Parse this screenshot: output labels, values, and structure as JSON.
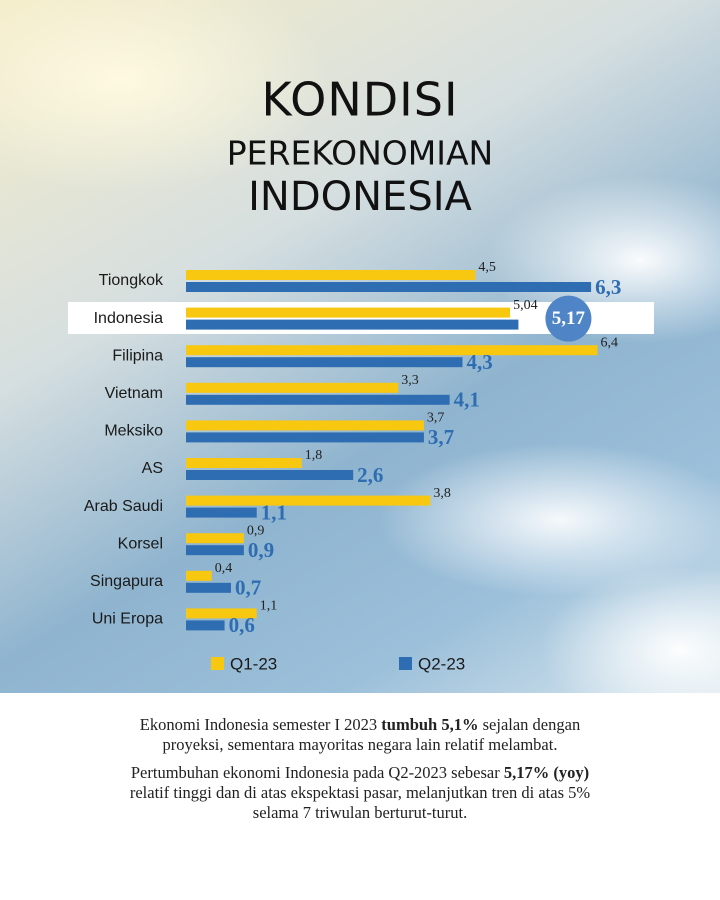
{
  "chart_data": {
    "type": "bar",
    "orientation": "horizontal",
    "title": [
      "KONDISI",
      "PEREKONOMIAN",
      "INDONESIA"
    ],
    "categories": [
      "Tiongkok",
      "Indonesia",
      "Filipina",
      "Vietnam",
      "Meksiko",
      "AS",
      "Arab Saudi",
      "Korsel",
      "Singapura",
      "Uni Eropa"
    ],
    "series": [
      {
        "name": "Q1-23",
        "color": "#f8c70f",
        "values": [
          4.5,
          5.04,
          6.4,
          3.3,
          3.7,
          1.8,
          3.8,
          0.9,
          0.4,
          1.1
        ],
        "value_labels": [
          "4,5",
          "5,04",
          "6,4",
          "3,3",
          "3,7",
          "1,8",
          "3,8",
          "0,9",
          "0,4",
          "1,1"
        ]
      },
      {
        "name": "Q2-23",
        "color": "#2f6db3",
        "values": [
          6.3,
          5.17,
          4.3,
          4.1,
          3.7,
          2.6,
          1.1,
          0.9,
          0.7,
          0.6
        ],
        "value_labels": [
          "6,3",
          "5,17",
          "4,3",
          "4,1",
          "3,7",
          "2,6",
          "1,1",
          "0,9",
          "0,7",
          "0,6"
        ]
      }
    ]
  },
  "notes": [
    [
      "Ekonomi Indonesia semester I 2023 ",
      "tumbuh 5,1%",
      " sejalan dengan proyeksi, sementara mayoritas negara lain relatif melambat."
    ],
    [
      "Pertumbuhan ekonomi Indonesia pada Q2-2023 sebesar ",
      "5,17% (yoy)",
      " relatif tinggi dan di atas ekspektasi pasar, melanjutkan tren di atas 5% selama 7 triwulan berturut-turut."
    ]
  ]
}
